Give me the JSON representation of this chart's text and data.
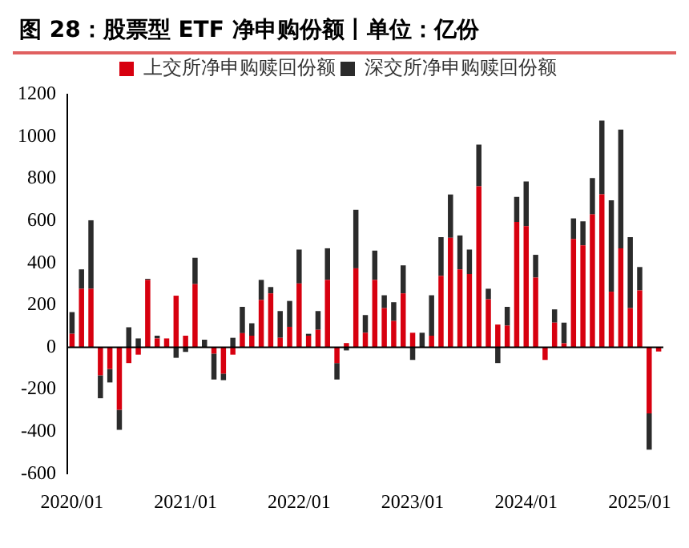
{
  "chart_data": {
    "type": "bar",
    "title": "图 28：股票型 ETF 净申购份额丨单位：亿份",
    "categories": [
      "2020/01",
      null,
      null,
      null,
      null,
      null,
      null,
      null,
      null,
      null,
      null,
      null,
      "2021/01",
      null,
      null,
      null,
      null,
      null,
      null,
      null,
      null,
      null,
      null,
      null,
      "2022/01",
      null,
      null,
      null,
      null,
      null,
      null,
      null,
      null,
      null,
      null,
      null,
      "2023/01",
      null,
      null,
      null,
      null,
      null,
      null,
      null,
      null,
      null,
      null,
      null,
      "2024/01",
      null,
      null,
      null,
      null,
      null,
      null,
      null,
      null,
      null,
      null,
      null,
      "2025/01",
      null,
      null
    ],
    "stacked": true,
    "series": [
      {
        "name": "上交所净申购赎回份额",
        "color": "#d7000f",
        "values": [
          64,
          278,
          278,
          -133,
          -103,
          -297,
          -75,
          -35,
          320,
          42,
          42,
          245,
          55,
          300,
          0,
          -30,
          -125,
          -35,
          67,
          55,
          225,
          256,
          45,
          97,
          303,
          55,
          83,
          320,
          -75,
          20,
          375,
          69,
          320,
          186,
          125,
          256,
          69,
          0,
          55,
          339,
          520,
          370,
          348,
          764,
          228,
          108,
          103,
          595,
          575,
          331,
          -60,
          117,
          19,
          514,
          484,
          631,
          726,
          264,
          470,
          186,
          270,
          -314,
          -20
        ]
      },
      {
        "name": "深交所净申购赎回份额",
        "color": "#2b2b2b",
        "values": [
          103,
          92,
          325,
          -109,
          -64,
          -95,
          95,
          42,
          5,
          13,
          0,
          -50,
          -22,
          125,
          36,
          -123,
          -31,
          45,
          125,
          59,
          95,
          30,
          127,
          123,
          161,
          9,
          89,
          150,
          -78,
          -15,
          278,
          84,
          139,
          61,
          89,
          133,
          -60,
          69,
          192,
          184,
          205,
          161,
          116,
          198,
          50,
          -75,
          89,
          119,
          212,
          108,
          0,
          63,
          98,
          98,
          114,
          172,
          350,
          434,
          564,
          337,
          111,
          -172,
          0
        ]
      }
    ],
    "ylim": [
      -600,
      1200
    ],
    "yticks": [
      -600,
      -400,
      -200,
      0,
      200,
      400,
      600,
      800,
      1000,
      1200
    ],
    "legend": "top"
  }
}
